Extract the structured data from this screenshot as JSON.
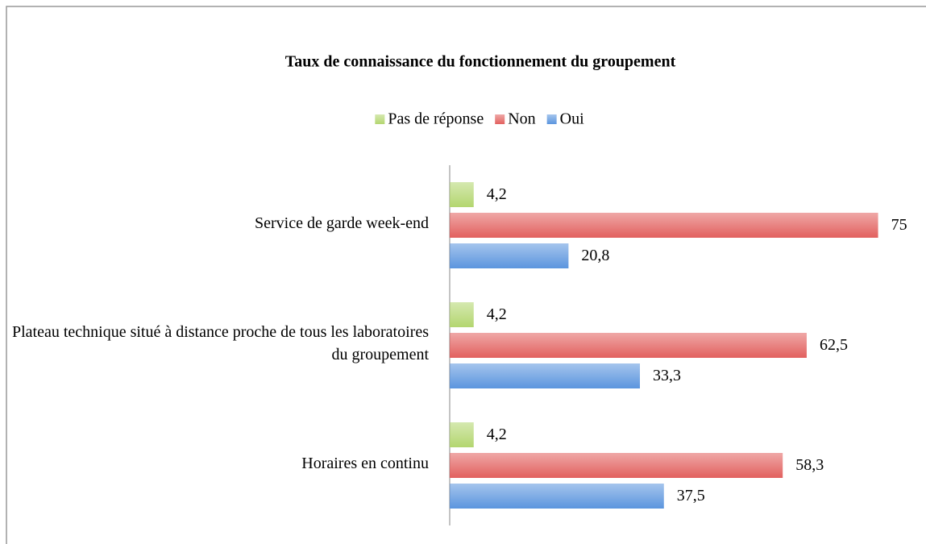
{
  "chart_data": {
    "type": "bar",
    "orientation": "horizontal",
    "title": "Taux de connaissance du fonctionnement du groupement",
    "categories": [
      "Service de garde week-end",
      "Plateau technique situé à distance proche de tous les laboratoires du groupement",
      "Horaires en continu"
    ],
    "series": [
      {
        "name": "Pas de réponse",
        "color": "#b3d66f",
        "values": [
          4.2,
          4.2,
          4.2
        ],
        "value_labels": [
          "4,2",
          "4,2",
          "4,2"
        ]
      },
      {
        "name": "Non",
        "color": "#e2605e",
        "values": [
          75,
          62.5,
          58.3
        ],
        "value_labels": [
          "75",
          "62,5",
          "58,3"
        ]
      },
      {
        "name": "Oui",
        "color": "#5b95de",
        "values": [
          20.8,
          33.3,
          37.5
        ],
        "value_labels": [
          "20,8",
          "33,3",
          "37,5"
        ]
      }
    ],
    "xlim": [
      0,
      80
    ],
    "legend": "top"
  }
}
